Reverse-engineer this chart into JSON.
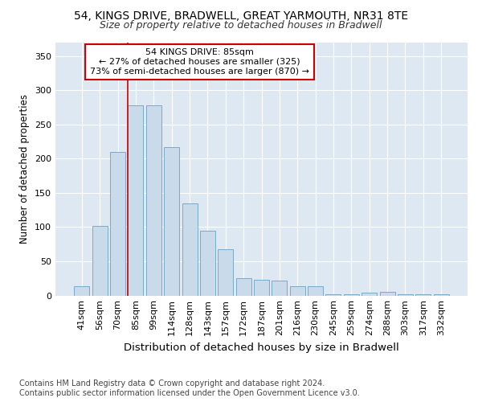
{
  "title1": "54, KINGS DRIVE, BRADWELL, GREAT YARMOUTH, NR31 8TE",
  "title2": "Size of property relative to detached houses in Bradwell",
  "xlabel": "Distribution of detached houses by size in Bradwell",
  "ylabel": "Number of detached properties",
  "categories": [
    "41sqm",
    "56sqm",
    "70sqm",
    "85sqm",
    "99sqm",
    "114sqm",
    "128sqm",
    "143sqm",
    "157sqm",
    "172sqm",
    "187sqm",
    "201sqm",
    "216sqm",
    "230sqm",
    "245sqm",
    "259sqm",
    "274sqm",
    "288sqm",
    "303sqm",
    "317sqm",
    "332sqm"
  ],
  "values": [
    14,
    102,
    210,
    278,
    278,
    217,
    135,
    95,
    67,
    25,
    23,
    22,
    14,
    14,
    2,
    2,
    4,
    5,
    2,
    2,
    2
  ],
  "bar_color": "#c9daea",
  "bar_edge_color": "#7aaac8",
  "vline_color": "#cc0000",
  "annotation_line1": "54 KINGS DRIVE: 85sqm",
  "annotation_line2": "← 27% of detached houses are smaller (325)",
  "annotation_line3": "73% of semi-detached houses are larger (870) →",
  "annotation_box_facecolor": "#ffffff",
  "annotation_box_edgecolor": "#cc0000",
  "ylim": [
    0,
    370
  ],
  "yticks": [
    0,
    50,
    100,
    150,
    200,
    250,
    300,
    350
  ],
  "bg_color": "#dde8f2",
  "footer1": "Contains HM Land Registry data © Crown copyright and database right 2024.",
  "footer2": "Contains public sector information licensed under the Open Government Licence v3.0.",
  "title1_fontsize": 10,
  "title2_fontsize": 9,
  "xlabel_fontsize": 9.5,
  "ylabel_fontsize": 8.5,
  "tick_fontsize": 8,
  "annotation_fontsize": 8,
  "footer_fontsize": 7
}
